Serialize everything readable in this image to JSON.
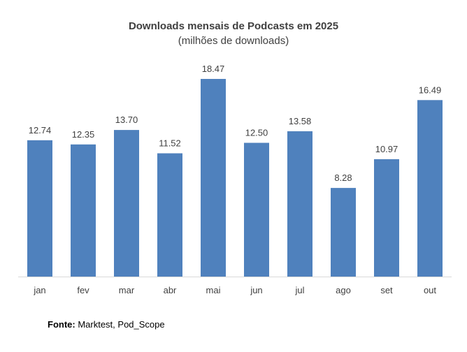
{
  "chart_data": {
    "type": "bar",
    "title": "Downloads mensais de Podcasts em 2025",
    "subtitle": "(milhões de downloads)",
    "categories": [
      "jan",
      "fev",
      "mar",
      "abr",
      "mai",
      "jun",
      "jul",
      "ago",
      "set",
      "out"
    ],
    "values": [
      12.74,
      12.35,
      13.7,
      11.52,
      18.47,
      12.5,
      13.58,
      8.28,
      10.97,
      16.49
    ],
    "value_labels": [
      "12.74",
      "12.35",
      "13.70",
      "11.52",
      "18.47",
      "12.50",
      "13.58",
      "8.28",
      "10.97",
      "16.49"
    ],
    "xlabel": "",
    "ylabel": "",
    "ylim": [
      0,
      18.47
    ],
    "grid": false,
    "legend": "none",
    "bar_color": "#4F81BD"
  },
  "source": {
    "label": "Fonte:",
    "text": " Marktest, Pod_Scope"
  }
}
